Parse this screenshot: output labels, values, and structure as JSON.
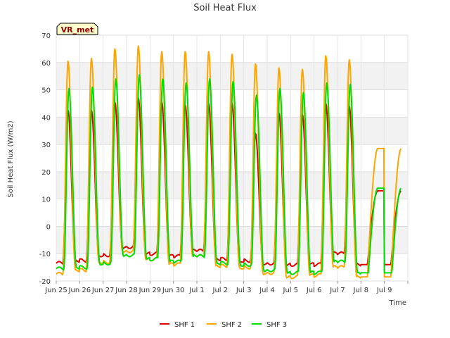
{
  "chart_data": {
    "type": "line",
    "title": "Soil Heat Flux",
    "xlabel": "Time",
    "ylabel": "Soil Heat Flux (W/m2)",
    "badge": "VR_met",
    "ylim": [
      -20,
      70
    ],
    "yticks": [
      -20,
      -10,
      0,
      10,
      20,
      30,
      40,
      50,
      60,
      70
    ],
    "xlim": [
      0,
      15
    ],
    "xticks": [
      0,
      1,
      2,
      3,
      4,
      5,
      6,
      7,
      8,
      9,
      10,
      11,
      12,
      13,
      14,
      15
    ],
    "xtick_labels": [
      "Jun 25",
      "Jun 26",
      "Jun 27",
      "Jun 28",
      "Jun 29",
      "Jun 30",
      "Jul 1",
      "Jul 2",
      "Jul 3",
      "Jul 4",
      "Jul 5",
      "Jul 6",
      "Jul 7",
      "Jul 8",
      "Jul 9",
      ""
    ],
    "grid": true,
    "legend_position": "bottom",
    "series": [
      {
        "name": "SHF 1",
        "color": "#dd0000",
        "daily_peak": [
          42.5,
          42.5,
          45.5,
          47,
          45.5,
          44.5,
          45,
          45,
          34,
          41.5,
          41,
          45,
          44
        ],
        "daily_min": [
          -13.5,
          -12.5,
          -10.5,
          -7.5,
          -10,
          -11,
          -9,
          -12,
          -12.5,
          -13.5,
          -14,
          -14,
          -10,
          -14
        ],
        "end_value": 13
      },
      {
        "name": "SHF 2",
        "color": "#ffa500",
        "daily_peak": [
          60.5,
          61.5,
          65,
          66,
          64,
          64,
          64,
          63,
          59.5,
          58,
          57.5,
          62.5,
          61
        ],
        "daily_min": [
          -17.5,
          -16,
          -13,
          -9,
          -12,
          -14,
          -11,
          -14.5,
          -15,
          -17,
          -18.5,
          -18,
          -15,
          -18.5
        ],
        "end_value": 28.5
      },
      {
        "name": "SHF 3",
        "color": "#00dd00",
        "daily_peak": [
          50.5,
          51,
          54,
          55.5,
          54,
          52.5,
          54,
          53,
          48,
          50.5,
          49,
          52.5,
          52
        ],
        "daily_min": [
          -15.5,
          -15,
          -13.5,
          -10.5,
          -12,
          -13,
          -11,
          -13.5,
          -14,
          -16,
          -17,
          -17,
          -13,
          -17
        ],
        "end_value": 14
      }
    ]
  }
}
